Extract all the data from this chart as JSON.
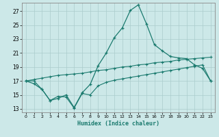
{
  "xlabel": "Humidex (Indice chaleur)",
  "background_color": "#cce8e8",
  "line_color": "#1a7a6e",
  "grid_color": "#aacccc",
  "xlim": [
    -0.5,
    23.5
  ],
  "ylim": [
    12.5,
    28.2
  ],
  "xticks": [
    0,
    1,
    2,
    3,
    4,
    5,
    6,
    7,
    8,
    9,
    10,
    11,
    12,
    13,
    14,
    15,
    16,
    17,
    18,
    19,
    20,
    21,
    22,
    23
  ],
  "yticks": [
    13,
    15,
    17,
    19,
    21,
    23,
    25,
    27
  ],
  "line1_x": [
    0,
    1,
    2,
    3,
    4,
    5,
    6,
    7,
    8,
    9,
    10,
    11,
    12,
    13,
    14,
    15,
    16,
    17,
    18,
    19,
    20,
    21,
    22,
    23
  ],
  "line1_y": [
    17.0,
    16.6,
    15.8,
    14.2,
    14.5,
    15.0,
    13.2,
    15.3,
    16.5,
    19.2,
    21.0,
    23.2,
    24.6,
    27.1,
    27.9,
    25.2,
    22.2,
    21.3,
    20.5,
    20.3,
    20.2,
    19.3,
    18.8,
    17.0
  ],
  "line2_x": [
    0,
    1,
    2,
    3,
    4,
    5,
    6,
    7,
    8,
    9,
    10,
    11,
    12,
    13,
    14,
    15,
    16,
    17,
    18,
    19,
    20,
    21,
    22,
    23
  ],
  "line2_y": [
    17.0,
    17.2,
    17.4,
    17.6,
    17.8,
    17.9,
    18.0,
    18.1,
    18.3,
    18.5,
    18.6,
    18.8,
    19.0,
    19.1,
    19.3,
    19.4,
    19.6,
    19.7,
    19.8,
    20.0,
    20.1,
    20.2,
    20.3,
    20.4
  ],
  "line3_x": [
    0,
    1,
    2,
    3,
    4,
    5,
    6,
    7,
    8,
    9,
    10,
    11,
    12,
    13,
    14,
    15,
    16,
    17,
    18,
    19,
    20,
    21,
    22,
    23
  ],
  "line3_y": [
    17.0,
    17.0,
    15.8,
    14.2,
    14.8,
    14.7,
    13.1,
    15.2,
    15.0,
    16.3,
    16.8,
    17.1,
    17.3,
    17.5,
    17.7,
    17.9,
    18.1,
    18.3,
    18.5,
    18.7,
    18.9,
    19.1,
    19.3,
    17.0
  ]
}
